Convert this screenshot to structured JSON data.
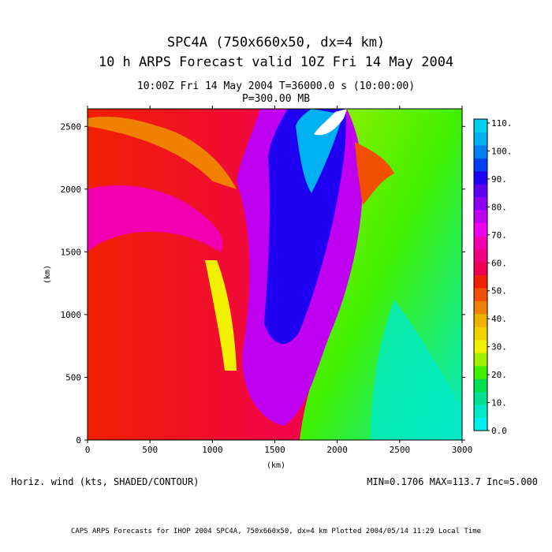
{
  "header": {
    "title_line1": "SPC4A (750x660x50, dx=4 km)",
    "title_line2": "10 h ARPS Forecast valid 10Z Fri 14 May 2004",
    "sub_line1": "10:00Z Fri 14 May 2004      T=36000.0 s (10:00:00)",
    "sub_line2": "P=300.00 MB"
  },
  "footer": {
    "left": "Horiz. wind (kts, SHADED/CONTOUR)",
    "right": "MIN=0.1706 MAX=113.7 Inc=5.000",
    "credit": "CAPS ARPS Forecasts for IHOP 2004  SPC4A, 750x660x50, dx=4 km  Plotted 2004/05/14 11:29 Local Time"
  },
  "chart_data": {
    "type": "heatmap",
    "variable": "Horiz. wind",
    "units": "kts",
    "xlabel": "(km)",
    "ylabel": "(km)",
    "xlim": [
      0,
      3000
    ],
    "ylim": [
      0,
      2640
    ],
    "x_ticks": [
      0,
      500,
      1000,
      1500,
      2000,
      2500,
      3000
    ],
    "y_ticks": [
      0,
      500,
      1000,
      1500,
      2000,
      2500
    ],
    "min": 0.1706,
    "max": 113.7,
    "increment": 5.0,
    "colorbar": {
      "labels": [
        "0.0",
        "10.",
        "20.",
        "30.",
        "40.",
        "50.",
        "60.",
        "70.",
        "80.",
        "90.",
        "100.",
        "110."
      ],
      "colors": [
        "#00f0f0",
        "#00e8c8",
        "#00e090",
        "#00e050",
        "#40f000",
        "#a0f000",
        "#f0f000",
        "#f0d000",
        "#f0b000",
        "#f08000",
        "#f05000",
        "#f02000",
        "#f00050",
        "#f00080",
        "#f000b0",
        "#f000f0",
        "#c000f0",
        "#9000f0",
        "#6000f0",
        "#2000f0",
        "#0040f0",
        "#0080f0",
        "#00b0f0",
        "#00d0f0"
      ]
    },
    "field_summary": [
      {
        "region": "north-central jet core",
        "x_km": [
          1550,
          2000
        ],
        "y_km": [
          1900,
          2640
        ],
        "value_kts": 110
      },
      {
        "region": "western ridge",
        "x_km": [
          0,
          1000
        ],
        "y_km": [
          0,
          1700
        ],
        "value_kts": 50
      },
      {
        "region": "southeast low winds",
        "x_km": [
          2400,
          3000
        ],
        "y_km": [
          0,
          900
        ],
        "value_kts": 10
      }
    ]
  }
}
